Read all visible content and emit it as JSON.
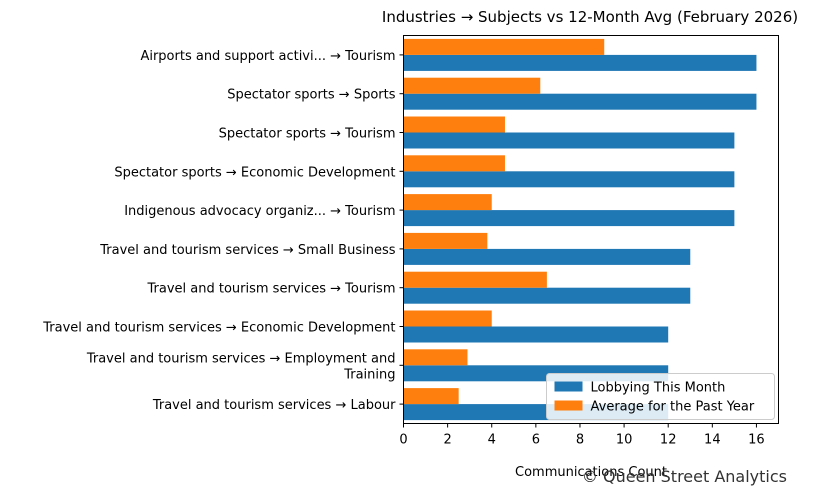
{
  "chart_data": {
    "type": "bar",
    "orientation": "horizontal",
    "title": "Industries → Subjects vs 12-Month Avg (February 2026)",
    "xlabel": "Communications Count",
    "ylabel": "",
    "xlim": [
      0,
      17
    ],
    "xticks": [
      0,
      2,
      4,
      6,
      8,
      10,
      12,
      14,
      16
    ],
    "grid": false,
    "legend_position": "bottom-right",
    "categories": [
      [
        "Airports and support activi... → Tourism"
      ],
      [
        "Spectator sports → Sports"
      ],
      [
        "Spectator sports → Tourism"
      ],
      [
        "Spectator sports → Economic Development"
      ],
      [
        "Indigenous advocacy organiz... → Tourism"
      ],
      [
        "Travel and tourism services → Small Business"
      ],
      [
        "Travel and tourism services → Tourism"
      ],
      [
        "Travel and tourism services → Economic Development"
      ],
      [
        "Travel and tourism services → Employment and",
        "Training"
      ],
      [
        "Travel and tourism services → Labour"
      ]
    ],
    "series": [
      {
        "name": "Lobbying This Month",
        "color": "#1f77b4",
        "values": [
          16,
          16,
          15,
          15,
          15,
          13,
          13,
          12,
          12,
          12
        ]
      },
      {
        "name": "Average for the Past Year",
        "color": "#ff7f0e",
        "values": [
          9.1,
          6.2,
          4.6,
          4.6,
          4.0,
          3.8,
          6.5,
          4.0,
          2.9,
          2.5
        ]
      }
    ]
  },
  "watermark": "© Queen Street Analytics"
}
